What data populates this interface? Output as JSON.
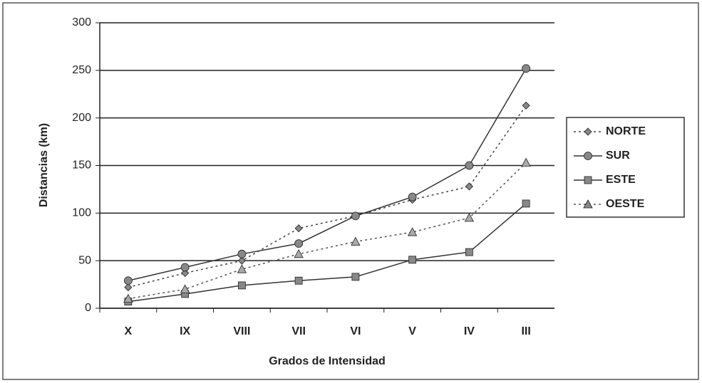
{
  "chart_data": {
    "type": "line",
    "xlabel": "Grados de Intensidad",
    "ylabel": "Distancias (km)",
    "categories": [
      "X",
      "IX",
      "VIII",
      "VII",
      "VI",
      "V",
      "IV",
      "III"
    ],
    "series": [
      {
        "name": "NORTE",
        "color": "#444444",
        "dash": "dotted",
        "marker": "diamond",
        "values": [
          22,
          37,
          50,
          84,
          97,
          114,
          128,
          213
        ]
      },
      {
        "name": "SUR",
        "color": "#333333",
        "dash": "solid",
        "marker": "circle",
        "values": [
          29,
          43,
          57,
          68,
          97,
          117,
          150,
          252
        ]
      },
      {
        "name": "ESTE",
        "color": "#333333",
        "dash": "solid",
        "marker": "square",
        "values": [
          7,
          15,
          24,
          29,
          33,
          51,
          59,
          110
        ]
      },
      {
        "name": "OESTE",
        "color": "#555555",
        "dash": "dotted",
        "marker": "triangle",
        "values": [
          10,
          20,
          41,
          57,
          70,
          80,
          95,
          153
        ]
      }
    ],
    "ylim": [
      0,
      300
    ],
    "yticks": [
      0,
      50,
      100,
      150,
      200,
      250,
      300
    ],
    "grid": true,
    "legend": "right"
  }
}
